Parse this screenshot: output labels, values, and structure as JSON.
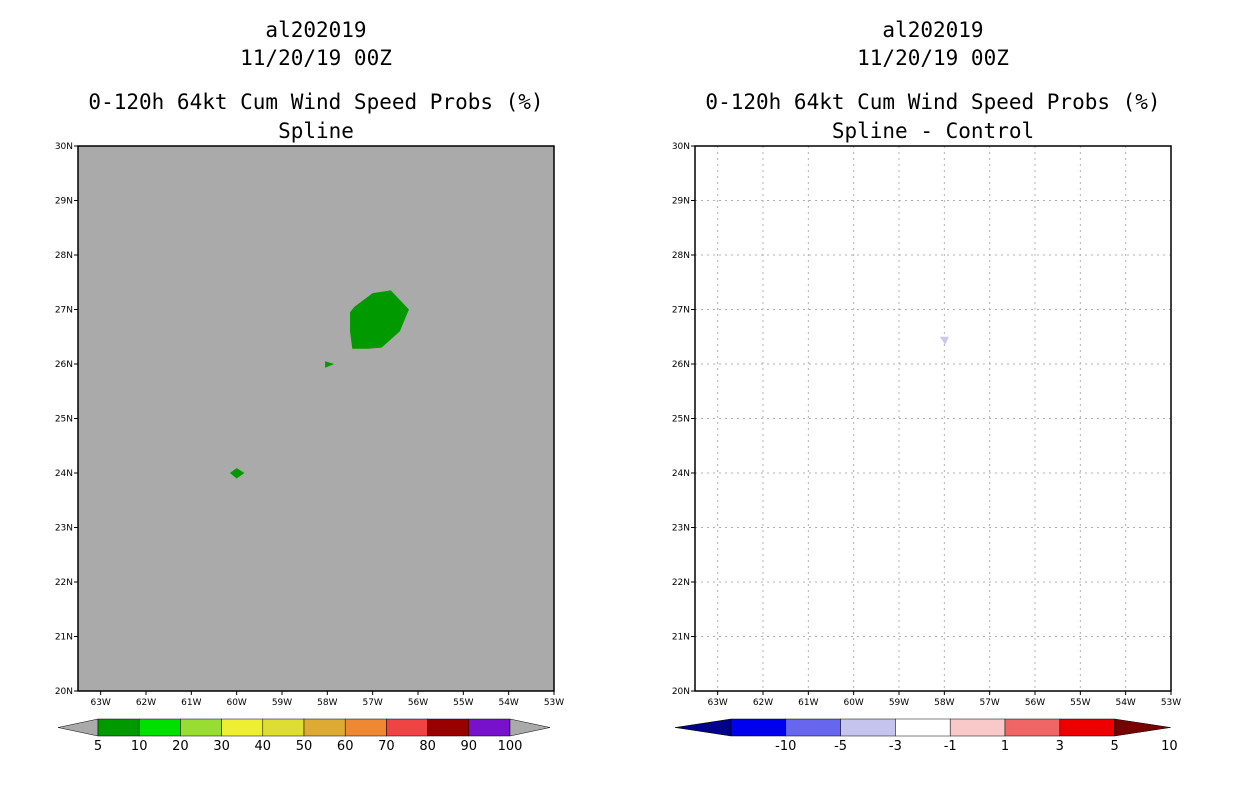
{
  "left_panel": {
    "title_line1": "al202019",
    "title_line2": "11/20/19 00Z",
    "title_line3": "0-120h 64kt Cum Wind Speed Probs (%)",
    "title_line4": "Spline",
    "background_color": "#aaaaaa",
    "feature_color": "#009900",
    "feature_points": [
      {
        "name": "main-blob",
        "lon_lat": [
          [
            -57.5,
            26.6
          ],
          [
            -57.5,
            26.95
          ],
          [
            -57.4,
            27.05
          ],
          [
            -57.0,
            27.3
          ],
          [
            -56.6,
            27.35
          ],
          [
            -56.2,
            27.0
          ],
          [
            -56.4,
            26.6
          ],
          [
            -56.8,
            26.3
          ],
          [
            -57.1,
            26.28
          ],
          [
            -57.45,
            26.28
          ]
        ]
      },
      {
        "name": "small-triangle",
        "lon_lat": [
          [
            -58.05,
            25.93
          ],
          [
            -57.85,
            26.0
          ],
          [
            -58.05,
            26.05
          ]
        ]
      },
      {
        "name": "small-diamond",
        "lon_lat": [
          [
            -60.15,
            24.0
          ],
          [
            -60.0,
            24.09
          ],
          [
            -59.83,
            24.0
          ],
          [
            -60.0,
            23.9
          ]
        ]
      }
    ],
    "colorbar": {
      "labels": [
        "5",
        "10",
        "20",
        "30",
        "40",
        "50",
        "60",
        "70",
        "80",
        "90",
        "100"
      ],
      "colors": [
        "#009900",
        "#00e000",
        "#99dd33",
        "#eeee33",
        "#dddd33",
        "#ddaa33",
        "#ee8833",
        "#ee4444",
        "#990000",
        "#7711cc"
      ],
      "end_colors": [
        "#aaaaaa",
        "#aaaaaa"
      ]
    }
  },
  "right_panel": {
    "title_line1": "al202019",
    "title_line2": "11/20/19 00Z",
    "title_line3": "0-120h 64kt Cum Wind Speed Probs (%)",
    "title_line4": "Spline - Control",
    "feature_color": "#c8c8f5",
    "feature_points": [
      {
        "name": "diff-diamond",
        "lon_lat": [
          [
            -58.1,
            26.5
          ],
          [
            -57.9,
            26.5
          ],
          [
            -57.98,
            26.35
          ]
        ]
      }
    ],
    "colorbar": {
      "labels": [
        "-10",
        "-5",
        "-3",
        "-1",
        "1",
        "3",
        "5",
        "10"
      ],
      "colors": [
        "#0000ee",
        "#6666ee",
        "#c4c4ee",
        "#ffffff",
        "#f9c9c9",
        "#f06666",
        "#ee0000"
      ],
      "end_colors": [
        "#000088",
        "#770000"
      ]
    }
  },
  "map": {
    "lon_min": -63.5,
    "lon_max": -53,
    "lat_min": 20,
    "lat_max": 30,
    "lon_ticks": [
      -63,
      -62,
      -61,
      -60,
      -59,
      -58,
      -57,
      -56,
      -55,
      -54,
      -53
    ],
    "lon_labels": [
      "63W",
      "62W",
      "61W",
      "60W",
      "59W",
      "58W",
      "57W",
      "56W",
      "55W",
      "54W",
      "53W"
    ],
    "lat_ticks": [
      20,
      21,
      22,
      23,
      24,
      25,
      26,
      27,
      28,
      29,
      30
    ],
    "lat_labels": [
      "20N",
      "21N",
      "22N",
      "23N",
      "24N",
      "25N",
      "26N",
      "27N",
      "28N",
      "29N",
      "30N"
    ]
  }
}
